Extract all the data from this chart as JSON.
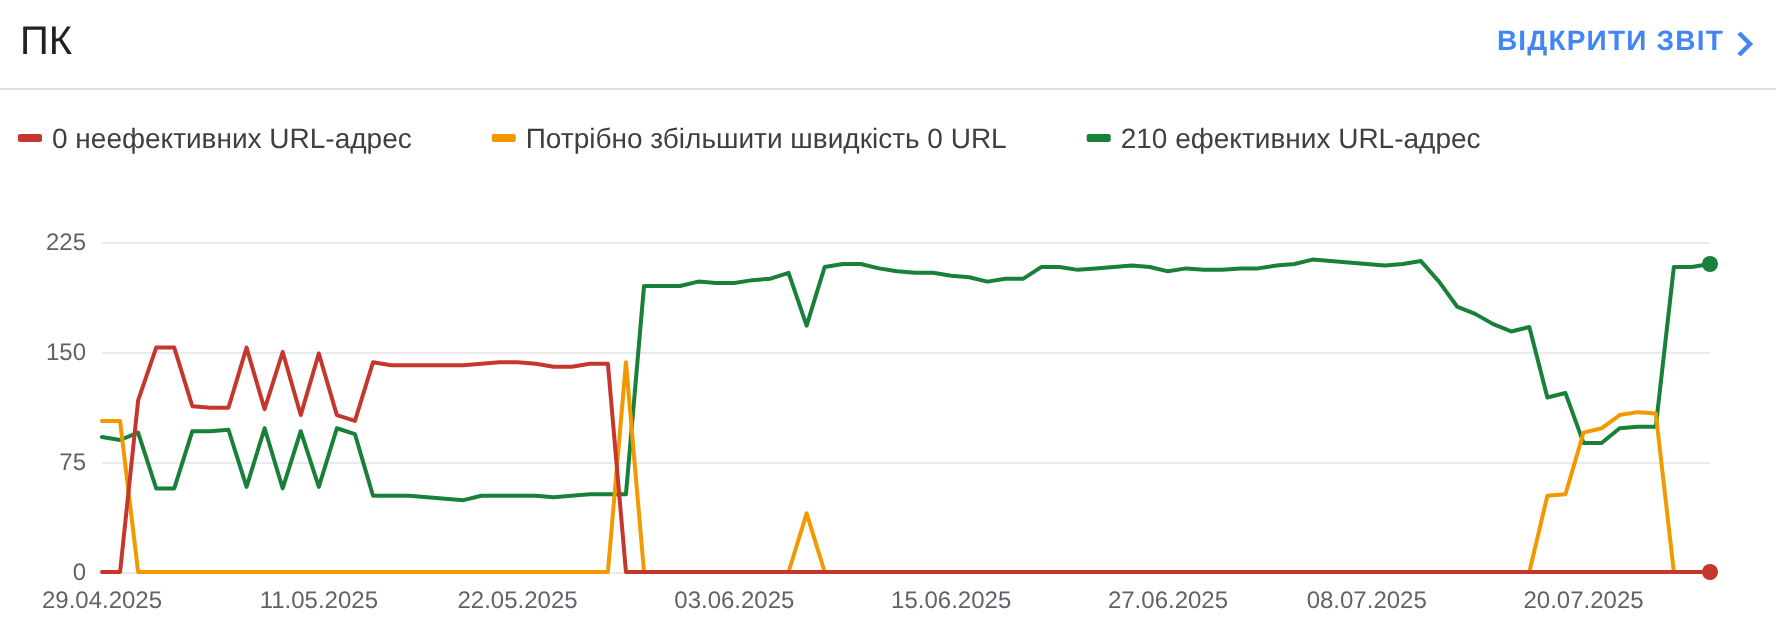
{
  "chart_data": {
    "type": "line",
    "title": "ПК",
    "annotations": [
      "ВІДКРИТИ ЗВІТ"
    ],
    "x": [
      "2025-04-29",
      "2025-04-30",
      "2025-05-01",
      "2025-05-02",
      "2025-05-03",
      "2025-05-04",
      "2025-05-05",
      "2025-05-06",
      "2025-05-07",
      "2025-05-08",
      "2025-05-09",
      "2025-05-10",
      "2025-05-11",
      "2025-05-12",
      "2025-05-13",
      "2025-05-14",
      "2025-05-15",
      "2025-05-16",
      "2025-05-17",
      "2025-05-18",
      "2025-05-19",
      "2025-05-20",
      "2025-05-21",
      "2025-05-22",
      "2025-05-23",
      "2025-05-24",
      "2025-05-25",
      "2025-05-26",
      "2025-05-27",
      "2025-05-28",
      "2025-05-29",
      "2025-05-30",
      "2025-05-31",
      "2025-06-01",
      "2025-06-02",
      "2025-06-03",
      "2025-06-04",
      "2025-06-05",
      "2025-06-06",
      "2025-06-07",
      "2025-06-08",
      "2025-06-09",
      "2025-06-10",
      "2025-06-11",
      "2025-06-12",
      "2025-06-13",
      "2025-06-14",
      "2025-06-15",
      "2025-06-16",
      "2025-06-17",
      "2025-06-18",
      "2025-06-19",
      "2025-06-20",
      "2025-06-21",
      "2025-06-22",
      "2025-06-23",
      "2025-06-24",
      "2025-06-25",
      "2025-06-26",
      "2025-06-27",
      "2025-06-28",
      "2025-06-29",
      "2025-06-30",
      "2025-07-01",
      "2025-07-02",
      "2025-07-03",
      "2025-07-04",
      "2025-07-05",
      "2025-07-06",
      "2025-07-07",
      "2025-07-08",
      "2025-07-09",
      "2025-07-10",
      "2025-07-11",
      "2025-07-12",
      "2025-07-13",
      "2025-07-14",
      "2025-07-15",
      "2025-07-16",
      "2025-07-17",
      "2025-07-18",
      "2025-07-19",
      "2025-07-20",
      "2025-07-21",
      "2025-07-22",
      "2025-07-23",
      "2025-07-24",
      "2025-07-25",
      "2025-07-26",
      "2025-07-27"
    ],
    "series": [
      {
        "name": "0 неефективних URL-адрес",
        "color": "#c5372c",
        "values": [
          0,
          0,
          117,
          153,
          153,
          113,
          112,
          112,
          153,
          111,
          150,
          107,
          149,
          107,
          103,
          143,
          141,
          141,
          141,
          141,
          141,
          142,
          143,
          143,
          142,
          140,
          140,
          142,
          142,
          0,
          0,
          0,
          0,
          0,
          0,
          0,
          0,
          0,
          0,
          0,
          0,
          0,
          0,
          0,
          0,
          0,
          0,
          0,
          0,
          0,
          0,
          0,
          0,
          0,
          0,
          0,
          0,
          0,
          0,
          0,
          0,
          0,
          0,
          0,
          0,
          0,
          0,
          0,
          0,
          0,
          0,
          0,
          0,
          0,
          0,
          0,
          0,
          0,
          0,
          0,
          0,
          0,
          0,
          0,
          0,
          0,
          0,
          0,
          0,
          0
        ]
      },
      {
        "name": "Потрібно збільшити швидкість 0 URL",
        "color": "#f29900",
        "values": [
          103,
          103,
          0,
          0,
          0,
          0,
          0,
          0,
          0,
          0,
          0,
          0,
          0,
          0,
          0,
          0,
          0,
          0,
          0,
          0,
          0,
          0,
          0,
          0,
          0,
          0,
          0,
          0,
          0,
          143,
          0,
          null,
          null,
          null,
          null,
          null,
          null,
          null,
          0,
          40,
          0,
          null,
          null,
          null,
          null,
          null,
          null,
          null,
          null,
          null,
          null,
          null,
          null,
          null,
          null,
          null,
          null,
          null,
          null,
          null,
          null,
          null,
          null,
          null,
          null,
          null,
          null,
          null,
          null,
          null,
          null,
          null,
          null,
          null,
          null,
          null,
          null,
          null,
          null,
          0,
          52,
          53,
          95,
          98,
          107,
          109,
          108,
          0,
          null,
          null
        ]
      },
      {
        "name": "210 ефективних URL-адрес",
        "color": "#188038",
        "values": [
          92,
          90,
          95,
          57,
          57,
          96,
          96,
          97,
          58,
          98,
          57,
          96,
          58,
          98,
          94,
          52,
          52,
          52,
          51,
          50,
          49,
          52,
          52,
          52,
          52,
          51,
          52,
          53,
          53,
          53,
          195,
          195,
          195,
          198,
          197,
          197,
          199,
          200,
          204,
          168,
          208,
          210,
          210,
          207,
          205,
          204,
          204,
          202,
          201,
          198,
          200,
          200,
          208,
          208,
          206,
          207,
          208,
          209,
          208,
          205,
          207,
          206,
          206,
          207,
          207,
          209,
          210,
          213,
          212,
          211,
          210,
          209,
          210,
          212,
          198,
          181,
          176,
          169,
          164,
          167,
          119,
          122,
          88,
          88,
          98,
          99,
          99,
          208,
          208,
          210
        ]
      }
    ],
    "xlim": [
      "2025-04-29",
      "2025-07-27"
    ],
    "xticks": [
      {
        "value": "2025-04-29",
        "label": "29.04.2025"
      },
      {
        "value": "2025-05-11",
        "label": "11.05.2025"
      },
      {
        "value": "2025-05-22",
        "label": "22.05.2025"
      },
      {
        "value": "2025-06-03",
        "label": "03.06.2025"
      },
      {
        "value": "2025-06-15",
        "label": "15.06.2025"
      },
      {
        "value": "2025-06-27",
        "label": "27.06.2025"
      },
      {
        "value": "2025-07-08",
        "label": "08.07.2025"
      },
      {
        "value": "2025-07-20",
        "label": "20.07.2025"
      }
    ],
    "ylim": [
      0,
      225
    ],
    "yticks": [
      0,
      75,
      150,
      225
    ],
    "grid": "y",
    "legend": "top left",
    "line_style": "solid"
  }
}
